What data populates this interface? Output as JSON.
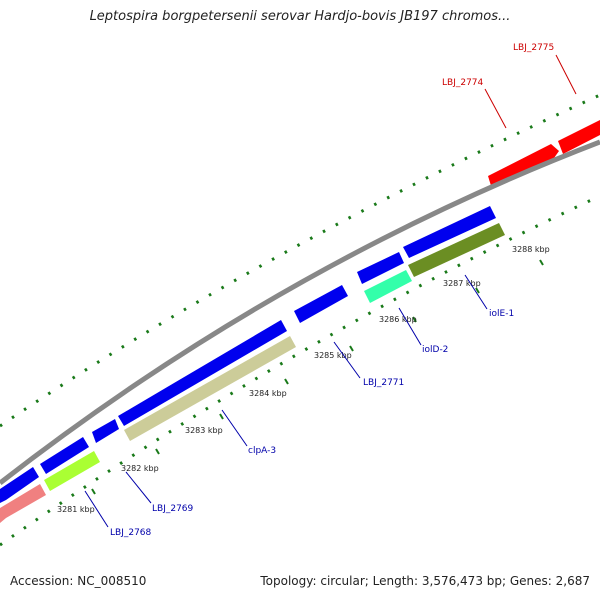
{
  "title": "Leptospira borgpetersenii serovar Hardjo-bovis JB197 chromos...",
  "accession": "Accession: NC_008510",
  "summary": "Topology: circular; Length: 3,576,473 bp; Genes: 2,687",
  "colors": {
    "backbone": "#888888",
    "forward_gene": "#ff0000",
    "reverse_gene": "#0000ee",
    "forward_label": "#cc0000",
    "reverse_label": "#0000aa",
    "tick": "#1a7a1a"
  },
  "kbp_labels": [
    "3281 kbp",
    "3282 kbp",
    "3283 kbp",
    "3284 kbp",
    "3285 kbp",
    "3286 kbp",
    "3287 kbp",
    "3288 kbp"
  ],
  "gene_labels": [
    {
      "name": "LBJ_2768",
      "strand": "reverse"
    },
    {
      "name": "LBJ_2769",
      "strand": "reverse"
    },
    {
      "name": "clpA-3",
      "strand": "reverse"
    },
    {
      "name": "LBJ_2771",
      "strand": "reverse"
    },
    {
      "name": "iolD-2",
      "strand": "reverse"
    },
    {
      "name": "iolE-1",
      "strand": "reverse"
    },
    {
      "name": "LBJ_2774",
      "strand": "forward"
    },
    {
      "name": "LBJ_2775",
      "strand": "forward"
    }
  ]
}
